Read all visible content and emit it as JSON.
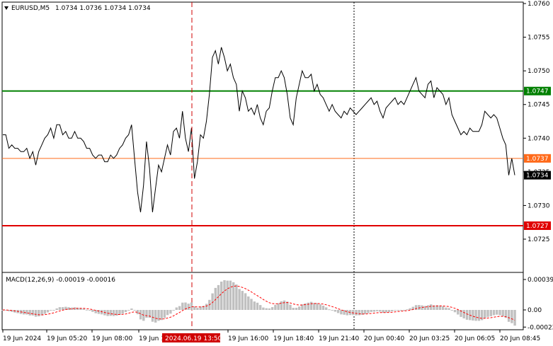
{
  "header": {
    "symbol": "EURUSD,M5",
    "ohlc": "1.0734 1.0736 1.0734 1.0734"
  },
  "price_panel": {
    "yaxis_ticks": [
      "1.0760",
      "1.0755",
      "1.0750",
      "1.0745",
      "1.0740",
      "1.0735",
      "1.0730",
      "1.0725"
    ],
    "levels": [
      {
        "label": "1.0747",
        "value": 1.0747,
        "color": "#008000"
      },
      {
        "label": "1.0737",
        "value": 1.0737,
        "color": "#ff6a1a"
      },
      {
        "label": "1.0727",
        "value": 1.0727,
        "color": "#e00000"
      }
    ],
    "current_price_label": "1.0734"
  },
  "macd_panel": {
    "title": "MACD(12,26,9) -0.00019 -0.00016",
    "yaxis_ticks": [
      "0.00039",
      "0.00",
      "-0.00022"
    ]
  },
  "time_axis": {
    "labels": [
      "19 Jun 2024",
      "19 Jun 05:20",
      "19 Jun 08:00",
      "19 Jun 1",
      "19 Jun 16:00",
      "19 Jun 18:40",
      "19 Jun 21:40",
      "20 Jun 00:40",
      "20 Jun 03:25",
      "20 Jun 06:05",
      "20 Jun 08:45"
    ],
    "highlight_label": "2024.06.19 13:50"
  },
  "colors": {
    "price_line": "#000000",
    "macd_hist": "#c0c0c0",
    "signal_line": "#ff0000",
    "crosshair": "#d00000",
    "highlight_bg": "#d00000"
  },
  "chart_data": {
    "type": "line",
    "title": "EURUSD,M5",
    "ylim": [
      1.07235,
      1.076
    ],
    "series": [
      {
        "name": "EURUSD,M5",
        "values": [
          1.07405,
          1.07405,
          1.07385,
          1.0739,
          1.07385,
          1.07385,
          1.0738,
          1.0738,
          1.07385,
          1.0737,
          1.0738,
          1.0736,
          1.0738,
          1.0739,
          1.074,
          1.07405,
          1.07415,
          1.074,
          1.0742,
          1.0742,
          1.07405,
          1.0741,
          1.074,
          1.074,
          1.0741,
          1.074,
          1.074,
          1.07395,
          1.07385,
          1.07385,
          1.07375,
          1.0737,
          1.07375,
          1.07375,
          1.07365,
          1.07365,
          1.07375,
          1.0737,
          1.07375,
          1.07385,
          1.0739,
          1.074,
          1.07405,
          1.0742,
          1.0737,
          1.0732,
          1.0729,
          1.0733,
          1.07395,
          1.07355,
          1.0729,
          1.07325,
          1.0736,
          1.0735,
          1.0737,
          1.0739,
          1.07375,
          1.0741,
          1.07415,
          1.074,
          1.0744,
          1.074,
          1.0738,
          1.07415,
          1.0734,
          1.07365,
          1.07405,
          1.074,
          1.07425,
          1.07465,
          1.0752,
          1.0753,
          1.0751,
          1.07535,
          1.0752,
          1.075,
          1.0751,
          1.0749,
          1.0748,
          1.0744,
          1.0747,
          1.0746,
          1.0744,
          1.07445,
          1.07435,
          1.0745,
          1.0743,
          1.0742,
          1.0744,
          1.07445,
          1.0747,
          1.0749,
          1.0749,
          1.075,
          1.0749,
          1.07465,
          1.0743,
          1.0742,
          1.0746,
          1.0748,
          1.075,
          1.0749,
          1.0749,
          1.07495,
          1.0747,
          1.0748,
          1.07465,
          1.0746,
          1.0745,
          1.0744,
          1.0745,
          1.0744,
          1.07435,
          1.0743,
          1.0744,
          1.07435,
          1.07445,
          1.0744,
          1.07435,
          1.0744,
          1.07445,
          1.0745,
          1.07455,
          1.0746,
          1.0745,
          1.07455,
          1.0744,
          1.0743,
          1.07445,
          1.0745,
          1.07455,
          1.0746,
          1.0745,
          1.07455,
          1.0745,
          1.0746,
          1.0747,
          1.0748,
          1.0749,
          1.0747,
          1.07465,
          1.0746,
          1.0748,
          1.07485,
          1.0746,
          1.07475,
          1.0747,
          1.07465,
          1.0745,
          1.0746,
          1.07435,
          1.07425,
          1.07415,
          1.07405,
          1.0741,
          1.07405,
          1.07415,
          1.0741,
          1.0741,
          1.0741,
          1.0742,
          1.0744,
          1.07435,
          1.0743,
          1.07435,
          1.0743,
          1.07415,
          1.074,
          1.0739,
          1.07345,
          1.0737,
          1.07345
        ]
      }
    ]
  }
}
